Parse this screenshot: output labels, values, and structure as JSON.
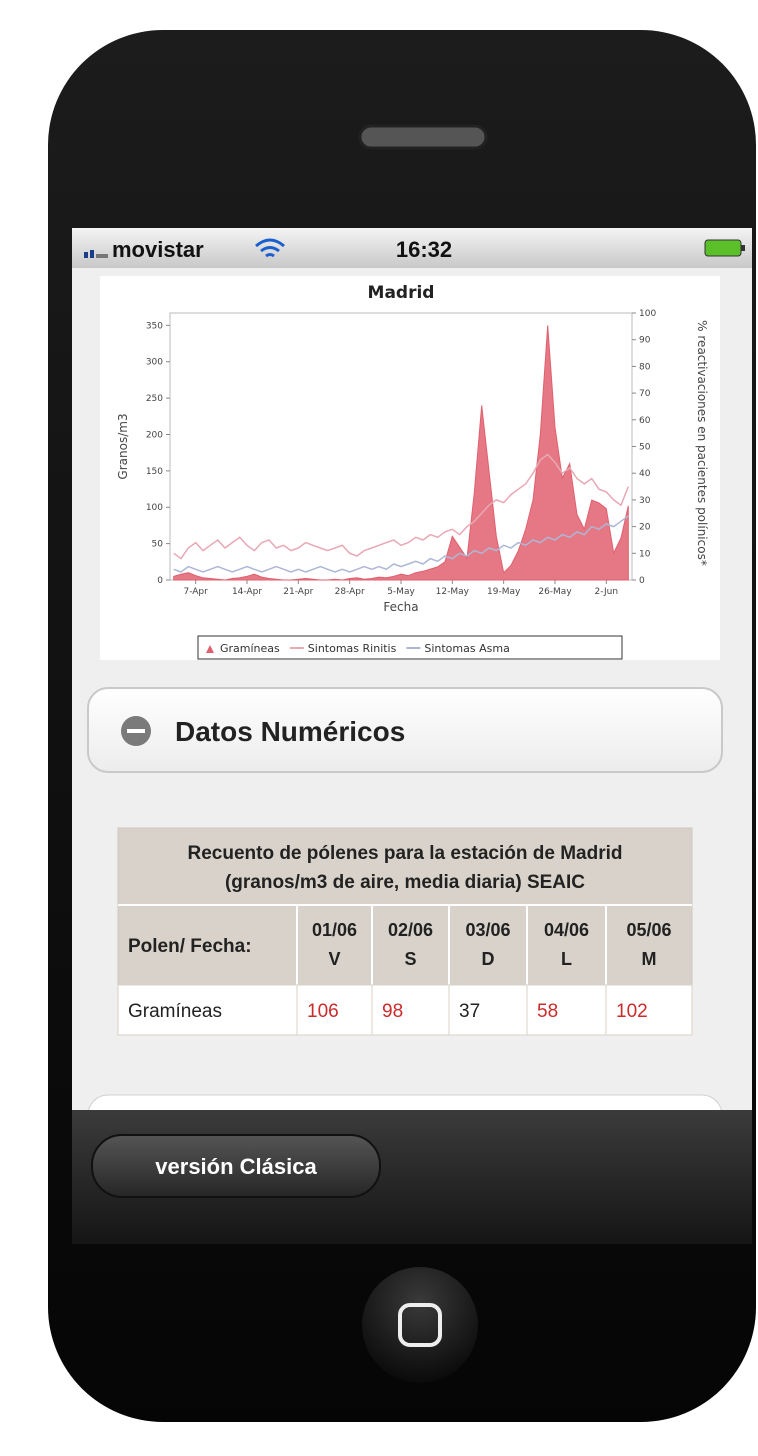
{
  "status_bar": {
    "carrier": "movistar",
    "time": "16:32"
  },
  "chart_data": {
    "type": "area",
    "title": "Madrid",
    "x_label": "Fecha",
    "y_label": "Granos/m3",
    "y2_label": "% reactivaciones en pacientes polínicos*",
    "x": [
      "4-Apr",
      "5-Apr",
      "6-Apr",
      "7-Apr",
      "8-Apr",
      "9-Apr",
      "10-Apr",
      "11-Apr",
      "12-Apr",
      "13-Apr",
      "14-Apr",
      "15-Apr",
      "16-Apr",
      "17-Apr",
      "18-Apr",
      "19-Apr",
      "20-Apr",
      "21-Apr",
      "22-Apr",
      "23-Apr",
      "24-Apr",
      "25-Apr",
      "26-Apr",
      "27-Apr",
      "28-Apr",
      "29-Apr",
      "30-Apr",
      "1-May",
      "2-May",
      "3-May",
      "4-May",
      "5-May",
      "6-May",
      "7-May",
      "8-May",
      "9-May",
      "10-May",
      "11-May",
      "12-May",
      "13-May",
      "14-May",
      "15-May",
      "16-May",
      "17-May",
      "18-May",
      "19-May",
      "20-May",
      "21-May",
      "22-May",
      "23-May",
      "24-May",
      "25-May",
      "26-May",
      "27-May",
      "28-May",
      "29-May",
      "30-May",
      "31-May",
      "1-Jun",
      "2-Jun",
      "3-Jun",
      "4-Jun",
      "5-Jun"
    ],
    "xticks": [
      "7-Apr",
      "14-Apr",
      "21-Apr",
      "28-Apr",
      "5-May",
      "12-May",
      "19-May",
      "26-May",
      "2-Jun"
    ],
    "ylim": [
      0,
      367
    ],
    "yticks": [
      0,
      50,
      100,
      150,
      200,
      250,
      300,
      350
    ],
    "y2lim": [
      0,
      100
    ],
    "y2ticks": [
      0,
      10,
      20,
      30,
      40,
      50,
      60,
      70,
      80,
      90,
      100
    ],
    "series": [
      {
        "name": "Gramíneas",
        "type": "area",
        "color": "#e0606e",
        "values": [
          5,
          8,
          10,
          6,
          3,
          2,
          1,
          0,
          2,
          3,
          5,
          8,
          4,
          2,
          1,
          0,
          0,
          1,
          2,
          1,
          0,
          0,
          1,
          0,
          2,
          3,
          1,
          2,
          4,
          3,
          5,
          8,
          6,
          10,
          12,
          15,
          18,
          25,
          60,
          45,
          30,
          120,
          240,
          150,
          60,
          10,
          20,
          40,
          70,
          110,
          200,
          350,
          210,
          140,
          160,
          90,
          70,
          110,
          106,
          98,
          37,
          58,
          102
        ]
      },
      {
        "name": "Sintomas Rinitis",
        "type": "line",
        "axis": "y2",
        "color": "#e8a8b4",
        "values": [
          10,
          8,
          12,
          14,
          11,
          13,
          15,
          12,
          14,
          16,
          13,
          11,
          14,
          15,
          12,
          13,
          11,
          12,
          14,
          13,
          12,
          11,
          12,
          13,
          10,
          9,
          11,
          12,
          13,
          14,
          15,
          13,
          14,
          16,
          15,
          17,
          16,
          18,
          19,
          17,
          20,
          22,
          25,
          28,
          30,
          29,
          32,
          34,
          36,
          40,
          45,
          47,
          44,
          40,
          42,
          38,
          36,
          38,
          34,
          33,
          30,
          28,
          35
        ]
      },
      {
        "name": "Sintomas Asma",
        "type": "line",
        "axis": "y2",
        "color": "#aeb6d6",
        "values": [
          4,
          3,
          5,
          4,
          3,
          4,
          5,
          4,
          3,
          4,
          5,
          4,
          3,
          4,
          5,
          4,
          3,
          4,
          3,
          4,
          5,
          4,
          3,
          4,
          3,
          4,
          5,
          4,
          5,
          4,
          6,
          5,
          6,
          7,
          6,
          8,
          7,
          9,
          8,
          10,
          9,
          11,
          10,
          12,
          11,
          13,
          12,
          14,
          13,
          15,
          14,
          16,
          15,
          17,
          16,
          18,
          17,
          20,
          19,
          21,
          20,
          22,
          24
        ]
      }
    ]
  },
  "section": {
    "title": "Datos Numéricos"
  },
  "table": {
    "title": [
      "Recuento de pólenes para la estación de Madrid",
      "(granos/m3 de aire, media diaria) SEAIC"
    ],
    "header": {
      "label": "Polen/ Fecha:",
      "columns": [
        {
          "date": "01/06",
          "day": "V"
        },
        {
          "date": "02/06",
          "day": "S"
        },
        {
          "date": "03/06",
          "day": "D"
        },
        {
          "date": "04/06",
          "day": "L"
        },
        {
          "date": "05/06",
          "day": "M"
        }
      ]
    },
    "rows": [
      {
        "label": "Gramíneas",
        "values": [
          106,
          98,
          37,
          58,
          102
        ],
        "colors": [
          "#cc2b2b",
          "#cc2b2b",
          "#222222",
          "#cc2b2b",
          "#cc2b2b"
        ]
      }
    ]
  },
  "toolbar": {
    "button": "versión Clásica"
  }
}
